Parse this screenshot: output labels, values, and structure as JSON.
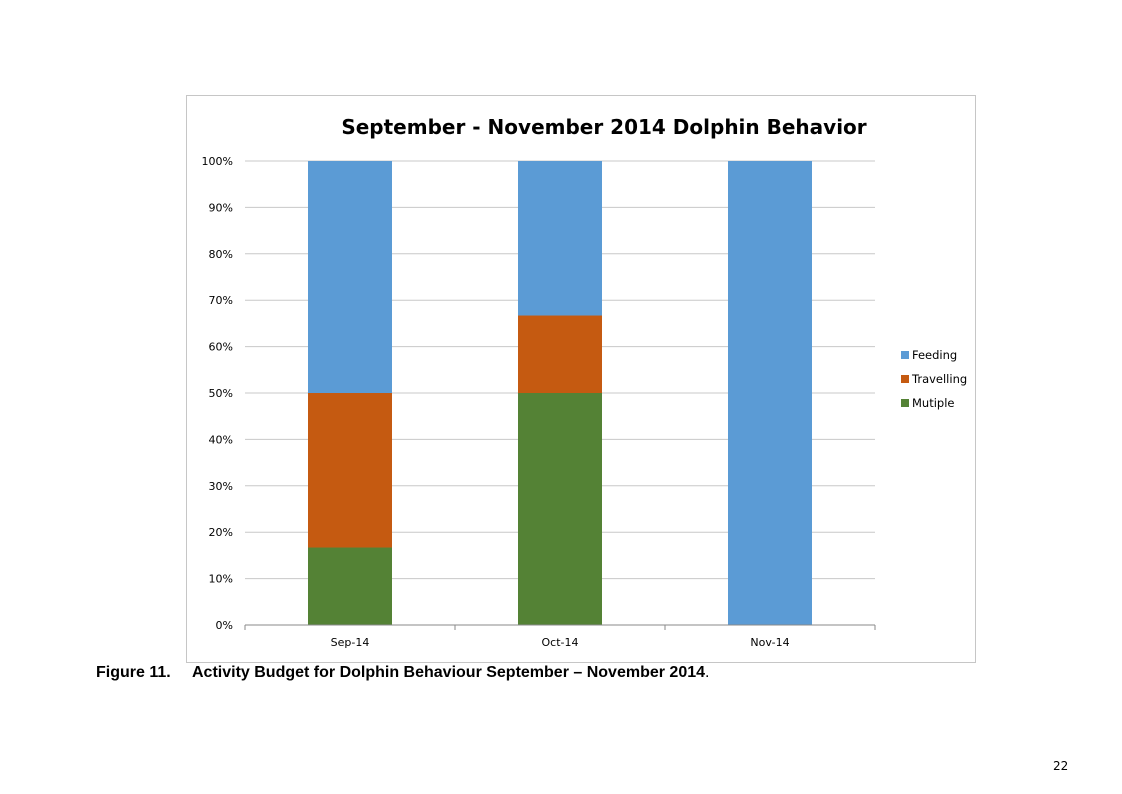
{
  "caption": {
    "number": "Figure 11.",
    "text": "Activity Budget for Dolphin Behaviour September – November 2014",
    "end": "."
  },
  "page_number": "22",
  "chart_data": {
    "type": "bar",
    "stacked": "percent",
    "title": "September - November 2014 Dolphin Behavior",
    "xlabel": "",
    "ylabel": "",
    "categories": [
      "Sep-14",
      "Oct-14",
      "Nov-14"
    ],
    "yticks": [
      "0%",
      "10%",
      "20%",
      "30%",
      "40%",
      "50%",
      "60%",
      "70%",
      "80%",
      "90%",
      "100%"
    ],
    "ylim": [
      0,
      100
    ],
    "grid": true,
    "legend_position": "right",
    "series": [
      {
        "name": "Mutiple",
        "color": "#548235",
        "values": [
          16.7,
          50,
          0
        ]
      },
      {
        "name": "Travelling",
        "color": "#c55a11",
        "values": [
          33.3,
          16.7,
          0
        ]
      },
      {
        "name": "Feeding",
        "color": "#5b9bd5",
        "values": [
          50,
          33.3,
          100
        ]
      }
    ],
    "legend_order": [
      "Feeding",
      "Travelling",
      "Mutiple"
    ]
  }
}
